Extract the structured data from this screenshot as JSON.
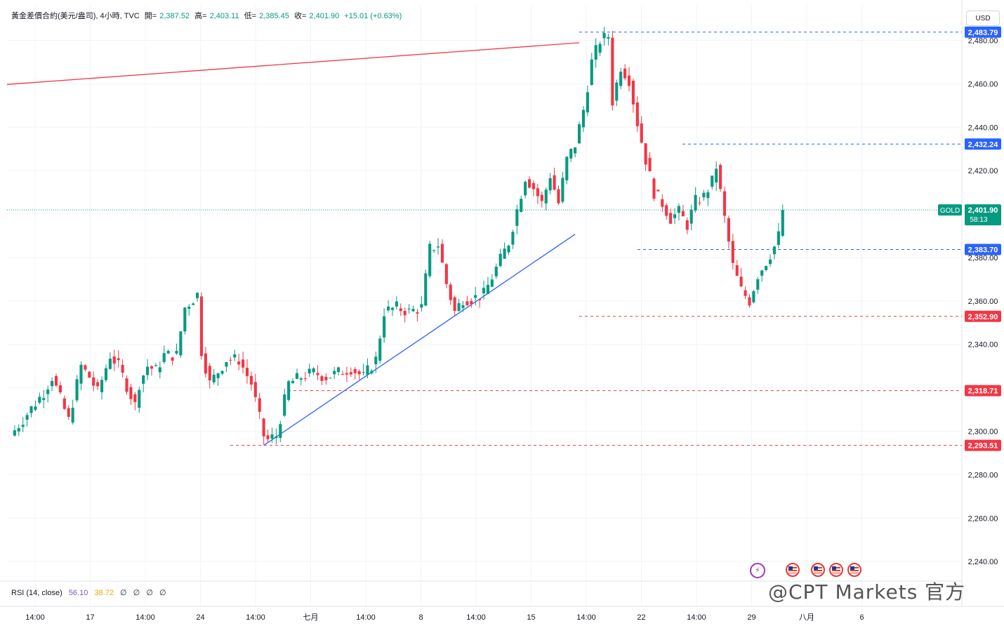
{
  "header": {
    "symbol": "黃金差價合約(美元/盎司), 4小時, TVC",
    "open_label": "開=",
    "open": "2,387.52",
    "high_label": "高=",
    "high": "2,403.11",
    "low_label": "低=",
    "low": "2,385.45",
    "close_label": "收=",
    "close": "2,401.90",
    "change": "+15.01 (+0.63%)"
  },
  "currency_button": "USD",
  "rsi": {
    "label": "RSI (14, close)",
    "value1": "56.10",
    "value2": "38.72",
    "extra": [
      "∅",
      "∅",
      "∅",
      "∅"
    ]
  },
  "watermark": "@CPT Markets 官方",
  "colors": {
    "up": "#089981",
    "down": "#f23645",
    "trend_blue": "#2962ff",
    "trend_red": "#f23645",
    "grid": "#f0f3fa"
  },
  "chart_data": {
    "type": "candlestick",
    "ylim": [
      2231,
      2496
    ],
    "y_ticks": [
      "2,240.00",
      "2,260.00",
      "2,280.00",
      "2,300.00",
      "2,320.00",
      "2,340.00",
      "2,360.00",
      "2,380.00",
      "2,400.00",
      "2,420.00",
      "2,440.00",
      "2,460.00",
      "2,480.00"
    ],
    "x_ticks": [
      "14:00",
      "17",
      "14:00",
      "24",
      "14:00",
      "七月",
      "14:00",
      "8",
      "14:00",
      "15",
      "14:00",
      "22",
      "14:00",
      "29",
      "八月",
      "6"
    ],
    "current_price": {
      "symbol": "GOLD",
      "value": "2,401.90",
      "countdown": "58:13"
    },
    "horizontal_levels": [
      {
        "label": "2,483.79",
        "value": 2483.79,
        "color": "blue"
      },
      {
        "label": "2,432.24",
        "value": 2432.24,
        "color": "blue"
      },
      {
        "label": "2,383.70",
        "value": 2383.7,
        "color": "blue"
      },
      {
        "label": "2,352.90",
        "value": 2352.9,
        "color": "red"
      },
      {
        "label": "2,318.71",
        "value": 2318.71,
        "color": "red"
      },
      {
        "label": "2,293.51",
        "value": 2293.51,
        "color": "red"
      }
    ],
    "trendlines": [
      {
        "name": "resistance",
        "color": "red",
        "from": [
          0,
          2459.7
        ],
        "to": [
          137,
          2478.9
        ]
      },
      {
        "name": "support",
        "color": "blue",
        "from": [
          61,
          2293.5
        ],
        "to": [
          136,
          2390.7
        ]
      }
    ],
    "anchors": [
      [
        0,
        2298
      ],
      [
        8,
        2318
      ],
      [
        10,
        2325
      ],
      [
        14,
        2305
      ],
      [
        17,
        2330
      ],
      [
        19,
        2325
      ],
      [
        21,
        2318
      ],
      [
        24,
        2335
      ],
      [
        26,
        2330
      ],
      [
        30,
        2312
      ],
      [
        31,
        2322
      ],
      [
        33,
        2330
      ],
      [
        35,
        2328
      ],
      [
        37,
        2335
      ],
      [
        40,
        2335
      ],
      [
        42,
        2357
      ],
      [
        45,
        2363
      ],
      [
        46,
        2337
      ],
      [
        48,
        2322
      ],
      [
        52,
        2333
      ],
      [
        55,
        2333
      ],
      [
        58,
        2322
      ],
      [
        61,
        2298
      ],
      [
        62,
        2296
      ],
      [
        64,
        2298
      ],
      [
        67,
        2322
      ],
      [
        70,
        2325
      ],
      [
        73,
        2327
      ],
      [
        76,
        2325
      ],
      [
        79,
        2327
      ],
      [
        82,
        2329
      ],
      [
        85,
        2325
      ],
      [
        88,
        2333
      ],
      [
        90,
        2355
      ],
      [
        93,
        2357
      ],
      [
        96,
        2355
      ],
      [
        99,
        2357
      ],
      [
        101,
        2384
      ],
      [
        103,
        2386
      ],
      [
        105,
        2368
      ],
      [
        107,
        2355
      ],
      [
        109,
        2361
      ],
      [
        111,
        2361
      ],
      [
        114,
        2363
      ],
      [
        117,
        2375
      ],
      [
        120,
        2387
      ],
      [
        122,
        2402
      ],
      [
        124,
        2417
      ],
      [
        126,
        2412
      ],
      [
        128,
        2405
      ],
      [
        130,
        2418
      ],
      [
        132,
        2405
      ],
      [
        134,
        2425
      ],
      [
        136,
        2432
      ],
      [
        138,
        2448
      ],
      [
        140,
        2470
      ],
      [
        142,
        2480
      ],
      [
        144,
        2482
      ],
      [
        145,
        2452
      ],
      [
        147,
        2468
      ],
      [
        149,
        2462
      ],
      [
        151,
        2442
      ],
      [
        153,
        2425
      ],
      [
        155,
        2410
      ],
      [
        157,
        2405
      ],
      [
        159,
        2398
      ],
      [
        161,
        2401
      ],
      [
        163,
        2395
      ],
      [
        165,
        2406
      ],
      [
        167,
        2408
      ],
      [
        169,
        2415
      ],
      [
        170,
        2422
      ],
      [
        172,
        2398
      ],
      [
        174,
        2376
      ],
      [
        176,
        2365
      ],
      [
        178,
        2360
      ],
      [
        180,
        2372
      ],
      [
        182,
        2378
      ],
      [
        184,
        2385
      ],
      [
        185,
        2390
      ],
      [
        186,
        2401.9
      ]
    ],
    "last_close": 2401.9
  }
}
